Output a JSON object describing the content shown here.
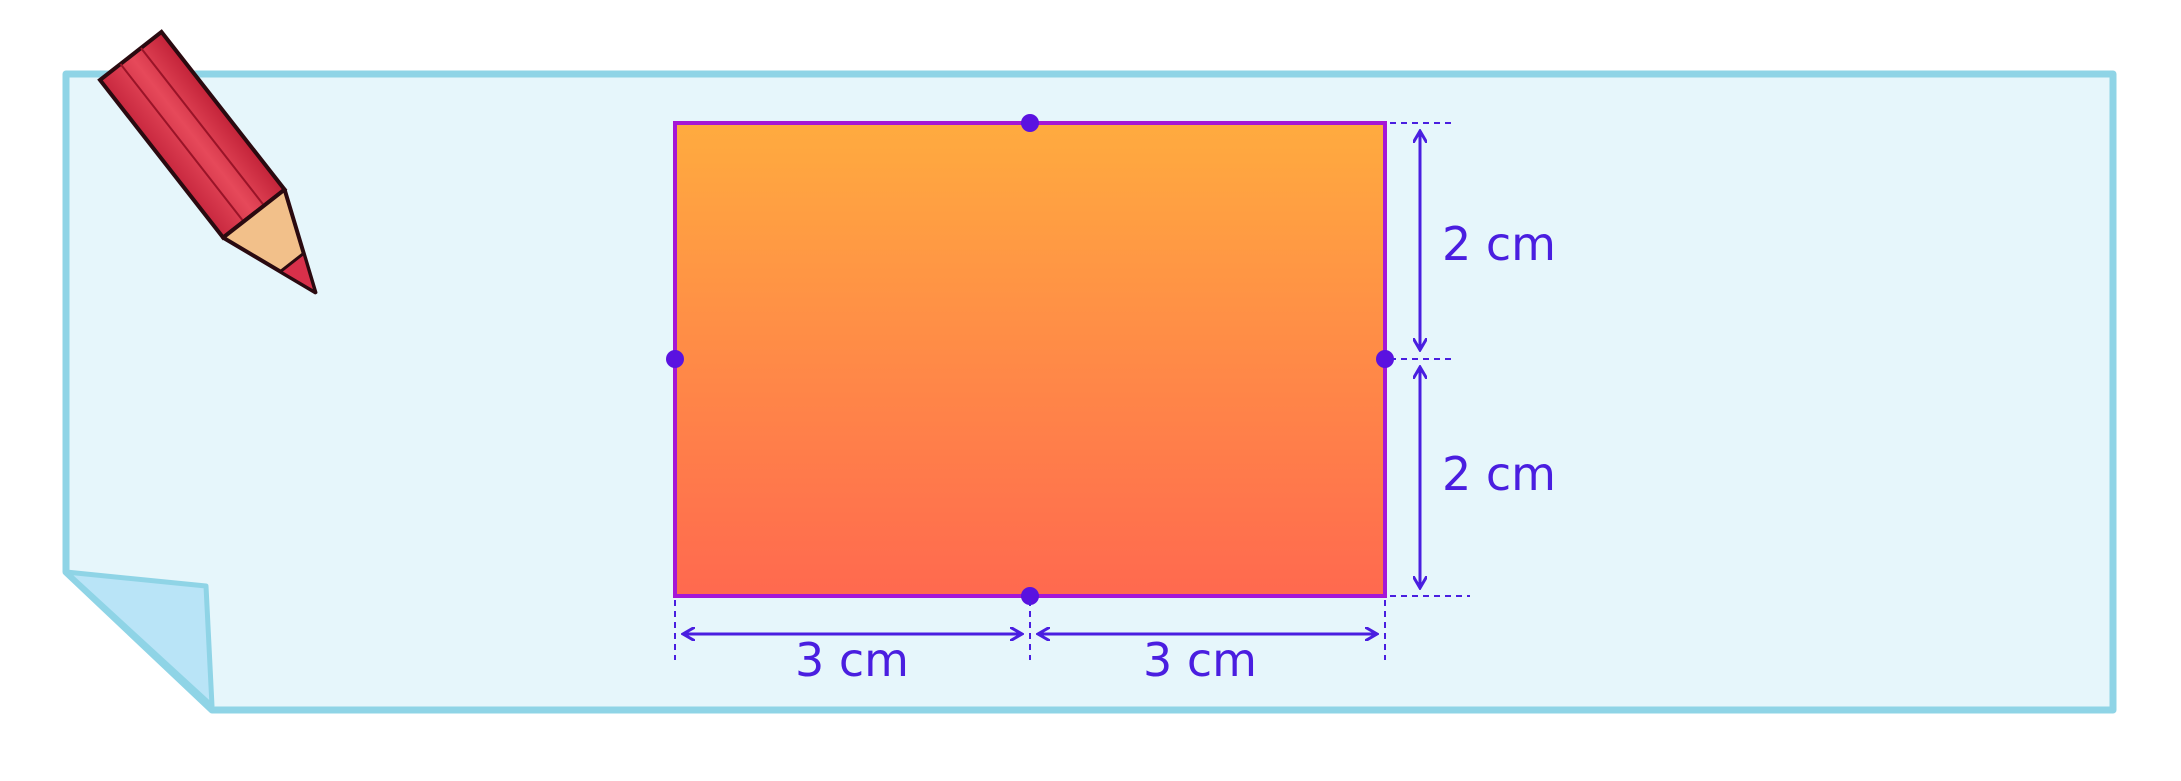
{
  "diagram": {
    "shape": "rectangle",
    "colors": {
      "paper_fill": "#e6f6fb",
      "paper_border": "#8fd4e6",
      "paper_curl": "#b9e4f7",
      "rect_fill_top": "#ffaa3e",
      "rect_fill_bottom": "#ff6a4f",
      "rect_border": "#a517d6",
      "midpoint_dot": "#5a12e0",
      "dimension_line": "#4a1ee0"
    },
    "dimensions": {
      "right_upper": "2 cm",
      "right_lower": "2 cm",
      "bottom_left": "3 cm",
      "bottom_right": "3 cm"
    },
    "icons": {
      "pencil": "pencil-icon"
    }
  }
}
